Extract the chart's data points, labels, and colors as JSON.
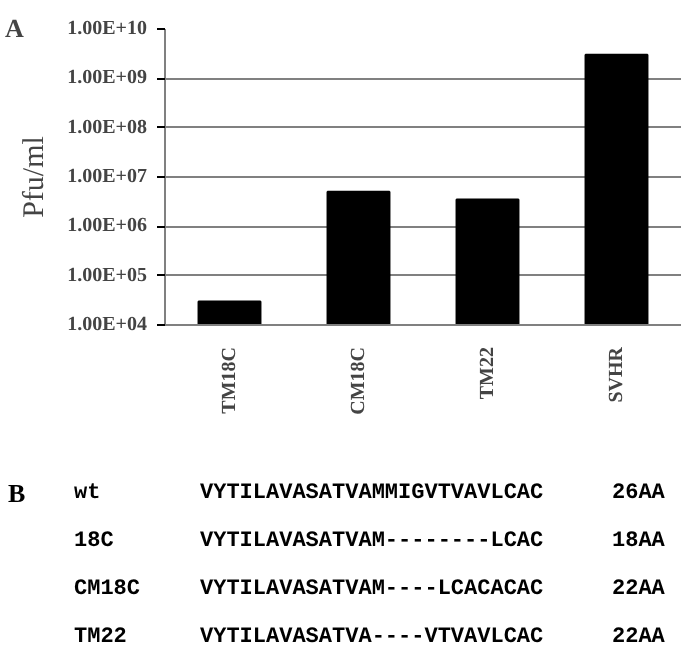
{
  "chart_data": {
    "type": "bar",
    "ylabel": "Pfu/ml",
    "categories": [
      "TM18C",
      "CM18C",
      "TM22",
      "SVHR"
    ],
    "values": [
      30000,
      5000000,
      3500000,
      3000000000
    ],
    "color": "#000000",
    "log": true,
    "grid": "y",
    "ylim": [
      10000,
      10000000000
    ],
    "yticks": [
      {
        "value": 10000,
        "label": "1.00E+04"
      },
      {
        "value": 100000,
        "label": "1.00E+05"
      },
      {
        "value": 1000000,
        "label": "1.00E+06"
      },
      {
        "value": 10000000,
        "label": "1.00E+07"
      },
      {
        "value": 100000000,
        "label": "1.00E+08"
      },
      {
        "value": 1000000000,
        "label": "1.00E+09"
      },
      {
        "value": 10000000000,
        "label": "1.00E+10"
      }
    ],
    "annotations": [
      "A",
      "B",
      "wt",
      "VYTILAVASATVAMMIGVTVAVLCAC",
      "26AA",
      "18C",
      "VYTILAVASATVAM--------LCAC",
      "18AA",
      "CM18C",
      "VYTILAVASATVAM----LCACACAC",
      "22AA",
      "TM22",
      "VYTILAVASATVA----VTVAVLCAC",
      "22AA"
    ]
  }
}
